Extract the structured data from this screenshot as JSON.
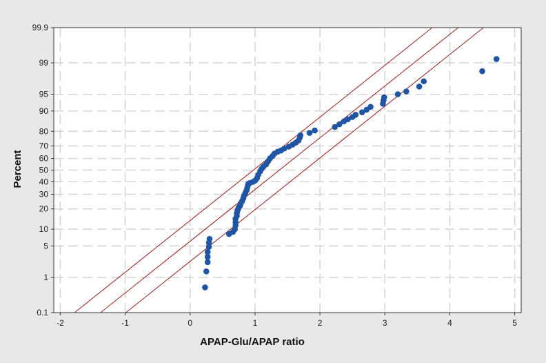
{
  "chart_data": {
    "type": "scatter",
    "title": "",
    "xlabel": "APAP-Glu/APAP ratio",
    "ylabel": "Percent",
    "xlim": [
      -2.1,
      5.1
    ],
    "ylim_percent": [
      0.1,
      99.9
    ],
    "y_scale": "normal-probability",
    "grid": true,
    "x_ticks": [
      -2,
      -1,
      0,
      1,
      2,
      3,
      4,
      5
    ],
    "y_ticks": [
      0.1,
      1,
      5,
      10,
      20,
      30,
      40,
      50,
      60,
      70,
      80,
      90,
      95,
      99,
      99.9
    ],
    "y_tick_labels": [
      "0.1",
      "1",
      "5",
      "10",
      "20",
      "30",
      "40",
      "50",
      "60",
      "70",
      "80",
      "90",
      "95",
      "99",
      "99.9"
    ],
    "x_tick_labels": [
      "-2",
      "-1",
      "0",
      "1",
      "2",
      "3",
      "4",
      "5"
    ],
    "colors": {
      "points": "#1f55a3",
      "fit_lines": "#9e2a2a",
      "grid": "#d4d4d4",
      "plot_bg": "#ffffff"
    },
    "fit_lines": [
      {
        "x": [
          -1.78,
          3.73
        ],
        "y": [
          0.1,
          99.9
        ]
      },
      {
        "x": [
          -1.38,
          4.13
        ],
        "y": [
          0.1,
          99.9
        ]
      },
      {
        "x": [
          -0.99,
          4.52
        ],
        "y": [
          0.1,
          99.9
        ]
      }
    ],
    "points": [
      [
        0.23,
        0.55
      ],
      [
        0.25,
        1.4
      ],
      [
        0.27,
        2.3
      ],
      [
        0.27,
        3.0
      ],
      [
        0.27,
        3.8
      ],
      [
        0.29,
        4.8
      ],
      [
        0.29,
        5.8
      ],
      [
        0.3,
        6.8
      ],
      [
        0.6,
        8.3
      ],
      [
        0.66,
        9.0
      ],
      [
        0.69,
        10.0
      ],
      [
        0.7,
        11.5
      ],
      [
        0.7,
        13.0
      ],
      [
        0.7,
        14.5
      ],
      [
        0.72,
        16.0
      ],
      [
        0.72,
        17.5
      ],
      [
        0.73,
        19.0
      ],
      [
        0.74,
        20.0
      ],
      [
        0.75,
        21.0
      ],
      [
        0.77,
        22.0
      ],
      [
        0.78,
        23.5
      ],
      [
        0.8,
        25.0
      ],
      [
        0.82,
        27.0
      ],
      [
        0.83,
        29.0
      ],
      [
        0.85,
        31.0
      ],
      [
        0.87,
        33.0
      ],
      [
        0.88,
        35.0
      ],
      [
        0.89,
        37.0
      ],
      [
        0.9,
        38.5
      ],
      [
        0.92,
        39.0
      ],
      [
        0.97,
        40.0
      ],
      [
        1.0,
        41.0
      ],
      [
        1.03,
        43.0
      ],
      [
        1.05,
        46.0
      ],
      [
        1.08,
        49.0
      ],
      [
        1.1,
        51.0
      ],
      [
        1.13,
        53.0
      ],
      [
        1.17,
        55.0
      ],
      [
        1.2,
        57.5
      ],
      [
        1.23,
        60.0
      ],
      [
        1.27,
        62.0
      ],
      [
        1.3,
        64.0
      ],
      [
        1.35,
        65.5
      ],
      [
        1.4,
        66.5
      ],
      [
        1.45,
        68.0
      ],
      [
        1.52,
        69.5
      ],
      [
        1.58,
        71.0
      ],
      [
        1.63,
        72.5
      ],
      [
        1.67,
        74.0
      ],
      [
        1.69,
        76.0
      ],
      [
        1.7,
        77.5
      ],
      [
        1.84,
        79.0
      ],
      [
        1.92,
        80.5
      ],
      [
        2.23,
        82.5
      ],
      [
        2.3,
        84.0
      ],
      [
        2.37,
        85.5
      ],
      [
        2.43,
        86.5
      ],
      [
        2.5,
        87.5
      ],
      [
        2.55,
        88.5
      ],
      [
        2.65,
        89.5
      ],
      [
        2.72,
        90.5
      ],
      [
        2.78,
        91.5
      ],
      [
        2.97,
        92.5
      ],
      [
        2.98,
        93.5
      ],
      [
        2.99,
        94.3
      ],
      [
        3.2,
        95.0
      ],
      [
        3.33,
        95.6
      ],
      [
        3.53,
        96.5
      ],
      [
        3.6,
        97.3
      ],
      [
        4.5,
        98.4
      ],
      [
        4.72,
        99.2
      ]
    ]
  }
}
